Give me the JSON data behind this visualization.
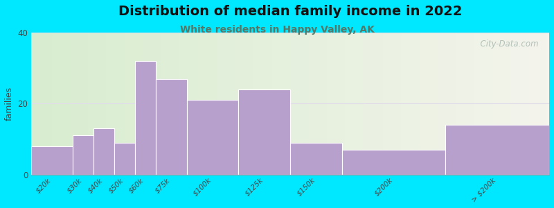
{
  "title": "Distribution of median family income in 2022",
  "subtitle": "White residents in Happy Valley, AK",
  "ylabel": "families",
  "bar_color": "#b8a0cc",
  "bar_edge_color": "#ffffff",
  "ylim": [
    0,
    40
  ],
  "yticks": [
    0,
    20,
    40
  ],
  "bg_outer": "#00e8ff",
  "bg_plot_topleft": "#d8edd0",
  "bg_plot_topright": "#f4f4ec",
  "title_fontsize": 14,
  "subtitle_fontsize": 10,
  "subtitle_color": "#557766",
  "ylabel_fontsize": 9,
  "tick_fontsize": 7.5,
  "watermark": "  City-Data.com",
  "watermark_color": "#a8b8b0",
  "grid_color": "#e0dce8",
  "title_color": "#111111",
  "bin_edges": [
    0,
    20,
    30,
    40,
    50,
    60,
    75,
    100,
    125,
    150,
    200,
    250
  ],
  "values": [
    8,
    11,
    13,
    9,
    32,
    27,
    21,
    24,
    9,
    7,
    14
  ],
  "tick_labels": [
    "$20k",
    "$30k",
    "$40k",
    "$50k",
    "$60k",
    "$75k",
    "$100k",
    "$125k",
    "$150k",
    "$200k",
    "> $200k"
  ],
  "tick_positions": [
    10,
    25,
    35,
    45,
    55,
    67.5,
    87.5,
    112.5,
    137.5,
    175,
    225
  ]
}
